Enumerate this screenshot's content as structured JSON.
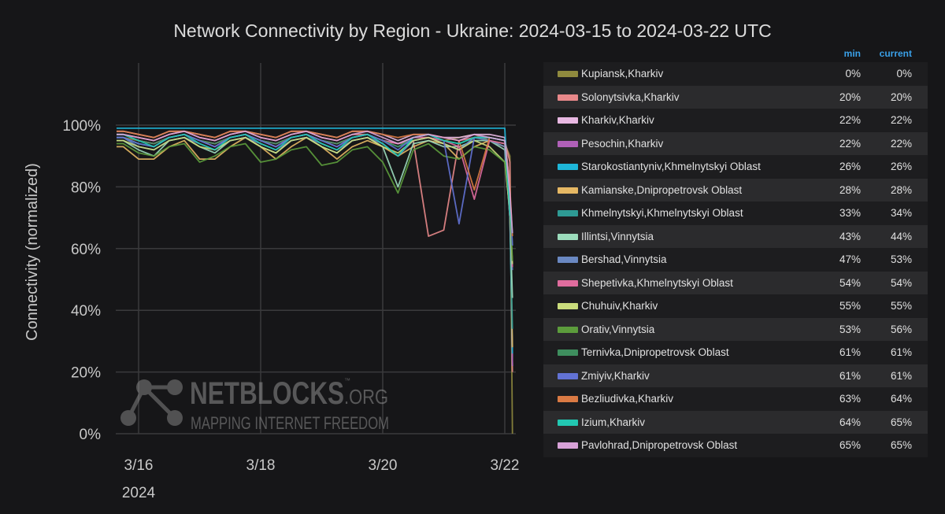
{
  "chart_data": {
    "type": "line",
    "title": "Network Connectivity by Region - Ukraine: 2024-03-15 to 2024-03-22 UTC",
    "ylabel": "Connectivity (normalized)",
    "xlabel": "",
    "ylim": [
      0,
      100
    ],
    "xlim": [
      "2024-03-15T15:00",
      "2024-03-22T04:20"
    ],
    "yticks": [
      "0%",
      "20%",
      "40%",
      "60%",
      "80%",
      "100%"
    ],
    "xticks": [
      {
        "date": "2024-03-16T00:00",
        "label": "3/16"
      },
      {
        "date": "2024-03-18T00:00",
        "label": "3/18"
      },
      {
        "date": "2024-03-20T00:00",
        "label": "3/20"
      },
      {
        "date": "2024-03-22T00:00",
        "label": "3/22"
      }
    ],
    "xyear": "2024",
    "grid": true,
    "legend_placement": "right",
    "legend_headers": {
      "min": "min",
      "current": "current"
    },
    "x": [
      "2024-03-15T18:00",
      "2024-03-16T00:00",
      "2024-03-16T06:00",
      "2024-03-16T12:00",
      "2024-03-16T18:00",
      "2024-03-17T00:00",
      "2024-03-17T06:00",
      "2024-03-17T12:00",
      "2024-03-17T18:00",
      "2024-03-18T00:00",
      "2024-03-18T06:00",
      "2024-03-18T12:00",
      "2024-03-18T18:00",
      "2024-03-19T00:00",
      "2024-03-19T06:00",
      "2024-03-19T12:00",
      "2024-03-19T18:00",
      "2024-03-20T00:00",
      "2024-03-20T06:00",
      "2024-03-20T12:00",
      "2024-03-20T18:00",
      "2024-03-21T00:00",
      "2024-03-21T06:00",
      "2024-03-21T12:00",
      "2024-03-21T18:00",
      "2024-03-22T00:00",
      "2024-03-22T02:00",
      "2024-03-22T03:00"
    ],
    "series": [
      {
        "name": "Kupiansk,Kharkiv",
        "color": "#8f8a3e",
        "min": "0%",
        "current": "0%",
        "values": [
          96,
          95,
          94,
          96,
          97,
          95,
          94,
          96,
          97,
          95,
          93,
          96,
          97,
          95,
          94,
          96,
          97,
          95,
          94,
          96,
          97,
          95,
          96,
          97,
          95,
          94,
          90,
          0
        ]
      },
      {
        "name": "Solonytsivka,Kharkiv",
        "color": "#e8888a",
        "min": "20%",
        "current": "20%",
        "values": [
          97,
          96,
          95,
          97,
          98,
          96,
          95,
          97,
          98,
          96,
          95,
          97,
          98,
          96,
          95,
          97,
          97,
          95,
          94,
          95,
          64,
          66,
          95,
          96,
          96,
          95,
          88,
          20
        ]
      },
      {
        "name": "Kharkiv,Kharkiv",
        "color": "#e8b8e2",
        "min": "22%",
        "current": "22%",
        "values": [
          98,
          97,
          96,
          98,
          98,
          97,
          96,
          98,
          98,
          97,
          96,
          98,
          98,
          97,
          96,
          98,
          98,
          97,
          95,
          97,
          97,
          96,
          96,
          97,
          97,
          96,
          80,
          22
        ]
      },
      {
        "name": "Pesochin,Kharkiv",
        "color": "#b060b8",
        "min": "22%",
        "current": "22%",
        "values": [
          97,
          95,
          94,
          96,
          97,
          95,
          93,
          96,
          97,
          95,
          93,
          96,
          97,
          95,
          93,
          96,
          97,
          95,
          93,
          95,
          96,
          94,
          92,
          96,
          96,
          95,
          80,
          22
        ]
      },
      {
        "name": "Starokostiantyniv,Khmelnytskyi Oblast",
        "color": "#1eb6d8",
        "min": "26%",
        "current": "26%",
        "values": [
          99,
          99,
          99,
          99,
          99,
          99,
          99,
          99,
          99,
          99,
          99,
          99,
          99,
          99,
          99,
          99,
          99,
          99,
          99,
          99,
          99,
          99,
          99,
          99,
          99,
          99,
          70,
          26
        ]
      },
      {
        "name": "Kamianske,Dnipropetrovsk Oblast",
        "color": "#e6b864",
        "min": "28%",
        "current": "28%",
        "values": [
          93,
          89,
          89,
          93,
          95,
          89,
          89,
          93,
          96,
          93,
          89,
          93,
          96,
          93,
          89,
          93,
          95,
          93,
          90,
          93,
          95,
          94,
          89,
          93,
          95,
          93,
          75,
          28
        ]
      },
      {
        "name": "Khmelnytskyi,Khmelnytskyi Oblast",
        "color": "#2e9a94",
        "min": "33%",
        "current": "34%",
        "values": [
          96,
          94,
          93,
          96,
          97,
          95,
          94,
          96,
          97,
          95,
          94,
          96,
          97,
          95,
          94,
          96,
          97,
          95,
          93,
          95,
          96,
          95,
          94,
          96,
          96,
          95,
          70,
          34
        ]
      },
      {
        "name": "Illintsi,Vinnytsia",
        "color": "#9cdcbc",
        "min": "43%",
        "current": "44%",
        "values": [
          95,
          92,
          90,
          95,
          96,
          93,
          91,
          95,
          96,
          93,
          91,
          95,
          96,
          93,
          91,
          95,
          96,
          93,
          80,
          94,
          95,
          93,
          93,
          95,
          95,
          92,
          70,
          44
        ]
      },
      {
        "name": "Bershad,Vinnytsia",
        "color": "#6a88c2",
        "min": "47%",
        "current": "53%",
        "values": [
          96,
          93,
          92,
          95,
          96,
          94,
          92,
          95,
          96,
          94,
          92,
          95,
          96,
          94,
          92,
          95,
          96,
          94,
          90,
          95,
          96,
          94,
          92,
          96,
          95,
          93,
          70,
          53
        ]
      },
      {
        "name": "Shepetivka,Khmelnytskyi Oblast",
        "color": "#e06c9e",
        "min": "54%",
        "current": "54%",
        "values": [
          97,
          95,
          94,
          96,
          97,
          95,
          94,
          96,
          97,
          95,
          94,
          96,
          97,
          95,
          94,
          96,
          97,
          95,
          94,
          96,
          96,
          95,
          93,
          76,
          95,
          94,
          75,
          54
        ]
      },
      {
        "name": "Chuhuiv,Kharkiv",
        "color": "#cadc7c",
        "min": "55%",
        "current": "55%",
        "values": [
          95,
          93,
          92,
          95,
          96,
          93,
          92,
          95,
          96,
          93,
          91,
          95,
          96,
          93,
          91,
          95,
          96,
          93,
          91,
          95,
          96,
          94,
          92,
          95,
          93,
          88,
          72,
          55
        ]
      },
      {
        "name": "Orativ,Vinnytsia",
        "color": "#5c9c3c",
        "min": "53%",
        "current": "56%",
        "values": [
          94,
          91,
          90,
          93,
          94,
          88,
          90,
          93,
          94,
          88,
          89,
          92,
          93,
          87,
          88,
          92,
          93,
          88,
          78,
          92,
          94,
          90,
          89,
          93,
          92,
          88,
          75,
          56
        ]
      },
      {
        "name": "Ternivka,Dnipropetrovsk Oblast",
        "color": "#3e8e5e",
        "min": "61%",
        "current": "61%",
        "values": [
          97,
          95,
          94,
          96,
          97,
          95,
          94,
          96,
          97,
          95,
          94,
          96,
          97,
          95,
          94,
          96,
          97,
          95,
          93,
          96,
          97,
          95,
          94,
          96,
          96,
          95,
          75,
          61
        ]
      },
      {
        "name": "Zmiyiv,Kharkiv",
        "color": "#6272d4",
        "min": "61%",
        "current": "61%",
        "values": [
          96,
          94,
          93,
          96,
          97,
          95,
          93,
          96,
          97,
          95,
          93,
          96,
          97,
          95,
          93,
          96,
          97,
          95,
          92,
          96,
          97,
          95,
          68,
          96,
          96,
          95,
          78,
          61
        ]
      },
      {
        "name": "Bezliudivka,Kharkiv",
        "color": "#da7a44",
        "min": "63%",
        "current": "64%",
        "values": [
          98,
          97,
          96,
          98,
          98,
          97,
          96,
          98,
          98,
          97,
          96,
          98,
          98,
          97,
          96,
          98,
          98,
          97,
          96,
          97,
          97,
          96,
          95,
          79,
          96,
          95,
          80,
          64
        ]
      },
      {
        "name": "Izium,Kharkiv",
        "color": "#22c8b2",
        "min": "64%",
        "current": "65%",
        "values": [
          97,
          95,
          93,
          96,
          97,
          94,
          92,
          96,
          97,
          94,
          92,
          96,
          97,
          94,
          92,
          96,
          97,
          94,
          90,
          96,
          97,
          95,
          94,
          96,
          96,
          95,
          72,
          65
        ]
      },
      {
        "name": "Pavlohrad,Dnipropetrovsk Oblast",
        "color": "#d8a2d8",
        "min": "65%",
        "current": "65%",
        "values": [
          97,
          96,
          95,
          97,
          98,
          96,
          95,
          97,
          98,
          96,
          95,
          97,
          98,
          96,
          95,
          97,
          98,
          96,
          94,
          96,
          97,
          96,
          95,
          97,
          96,
          95,
          78,
          65
        ]
      }
    ]
  },
  "watermark": {
    "brand": "NETBLOCKS",
    "suffix": ".ORG",
    "tm": "™",
    "tagline": "MAPPING INTERNET FREEDOM"
  }
}
